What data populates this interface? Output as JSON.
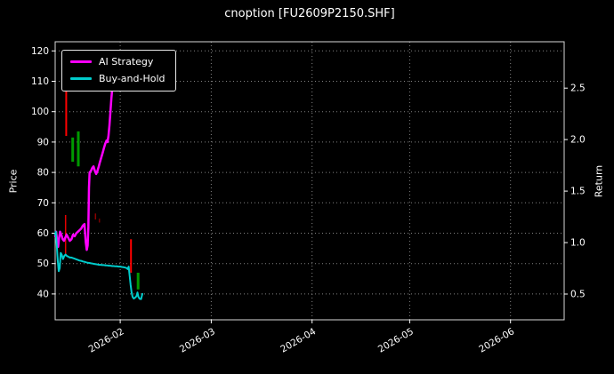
{
  "chart_data": {
    "type": "line",
    "title": "cnoption [FU2609P2150.SHF]",
    "xlabel": "",
    "ylabel_left": "Price",
    "ylabel_right": "Return",
    "legend_position": "upper left",
    "grid": "dotted",
    "colors": {
      "background": "#000000",
      "text": "#ffffff",
      "grid": "#9a9a9a",
      "up_mark": "#009900",
      "down_mark": "#ff0000"
    },
    "x_unit": "days from 2026-02-01",
    "xlim": [
      -20,
      136.5
    ],
    "ylim_left": [
      31.5,
      123
    ],
    "ylim_right": [
      0.25,
      2.95
    ],
    "x_tick_pos": [
      0,
      28,
      59,
      89,
      120
    ],
    "x_tick_labels": [
      "2026-02",
      "2026-03",
      "2026-04",
      "2026-05",
      "2026-06"
    ],
    "y_left_ticks": [
      40,
      50,
      60,
      70,
      80,
      90,
      100,
      110,
      120
    ],
    "y_right_ticks": [
      0.5,
      1.0,
      1.5,
      2.0,
      2.5
    ],
    "series": [
      {
        "name": "AI Strategy",
        "color": "#ff00ff",
        "width": 2.5,
        "axis": "left",
        "points": [
          [
            -20,
            59
          ],
          [
            -19.7,
            60.5
          ],
          [
            -19.4,
            57.5
          ],
          [
            -19.1,
            55.5
          ],
          [
            -18.8,
            58.5
          ],
          [
            -18.5,
            60.5
          ],
          [
            -18.1,
            59.5
          ],
          [
            -17.7,
            58
          ],
          [
            -17.3,
            57.5
          ],
          [
            -16.9,
            58.5
          ],
          [
            -16.5,
            59.5
          ],
          [
            -16,
            58.5
          ],
          [
            -15.5,
            57.5
          ],
          [
            -15,
            58
          ],
          [
            -14.5,
            59.5
          ],
          [
            -14,
            59
          ],
          [
            -13.5,
            60
          ],
          [
            -13,
            60.5
          ],
          [
            -12.5,
            61
          ],
          [
            -12,
            61.5
          ],
          [
            -11.5,
            62.5
          ],
          [
            -11,
            63
          ],
          [
            -10.6,
            57
          ],
          [
            -10.3,
            54.5
          ],
          [
            -10,
            56
          ],
          [
            -9.8,
            62
          ],
          [
            -9.6,
            75
          ],
          [
            -9.4,
            80
          ],
          [
            -9,
            80.5
          ],
          [
            -8.6,
            81.5
          ],
          [
            -8.2,
            82
          ],
          [
            -7.8,
            80.5
          ],
          [
            -7.4,
            79.5
          ],
          [
            -7,
            80.5
          ],
          [
            -6.6,
            82
          ],
          [
            -6.2,
            83.5
          ],
          [
            -5.8,
            85
          ],
          [
            -5.4,
            86.5
          ],
          [
            -5,
            88
          ],
          [
            -4.6,
            89.5
          ],
          [
            -4.2,
            90.5
          ],
          [
            -3.9,
            90
          ],
          [
            -3.6,
            92
          ],
          [
            -3.3,
            95.5
          ],
          [
            -3,
            100
          ],
          [
            -2.7,
            104.5
          ],
          [
            -2.4,
            108
          ],
          [
            -2.2,
            110
          ]
        ]
      },
      {
        "name": "Buy-and-Hold",
        "color": "#00cccc",
        "width": 2,
        "axis": "left",
        "points": [
          [
            -20,
            59.5
          ],
          [
            -19.8,
            60.5
          ],
          [
            -19.5,
            56
          ],
          [
            -19.2,
            51
          ],
          [
            -18.9,
            47.5
          ],
          [
            -18.6,
            48.5
          ],
          [
            -18.3,
            53.5
          ],
          [
            -18,
            53
          ],
          [
            -17.6,
            51.5
          ],
          [
            -17.2,
            52.5
          ],
          [
            -16.8,
            53
          ],
          [
            -16.4,
            52.5
          ],
          [
            -16,
            52.3
          ],
          [
            -15.5,
            52
          ],
          [
            -15,
            52
          ],
          [
            -14.5,
            51.8
          ],
          [
            -14,
            51.6
          ],
          [
            -13.5,
            51.4
          ],
          [
            -13,
            51.2
          ],
          [
            -12.5,
            51
          ],
          [
            -12,
            50.9
          ],
          [
            -11.5,
            50.7
          ],
          [
            -11,
            50.6
          ],
          [
            -10.5,
            50.4
          ],
          [
            -10,
            50.3
          ],
          [
            -9.5,
            50.2
          ],
          [
            -9,
            50.1
          ],
          [
            -8.5,
            50
          ],
          [
            -8,
            49.9
          ],
          [
            -7.5,
            49.8
          ],
          [
            -7,
            49.7
          ],
          [
            -6.5,
            49.6
          ],
          [
            -6,
            49.6
          ],
          [
            -5.5,
            49.5
          ],
          [
            -5,
            49.5
          ],
          [
            -4.5,
            49.4
          ],
          [
            -4,
            49.4
          ],
          [
            -3.5,
            49.3
          ],
          [
            -3,
            49.3
          ],
          [
            -2.5,
            49.2
          ],
          [
            -2,
            49.2
          ],
          [
            -1.5,
            49.1
          ],
          [
            -1,
            49.1
          ],
          [
            -0.5,
            49
          ],
          [
            0,
            49
          ],
          [
            0.5,
            48.9
          ],
          [
            1,
            48.8
          ],
          [
            1.5,
            48.7
          ],
          [
            2,
            48.5
          ],
          [
            2.3,
            48.2
          ],
          [
            2.6,
            49
          ],
          [
            2.9,
            46
          ],
          [
            3.2,
            43
          ],
          [
            3.5,
            40.5
          ],
          [
            3.8,
            39
          ],
          [
            4.2,
            38.5
          ],
          [
            4.6,
            38.8
          ],
          [
            5,
            39.3
          ],
          [
            5.3,
            40.5
          ],
          [
            5.6,
            39
          ],
          [
            6,
            38.4
          ],
          [
            6.4,
            38.3
          ],
          [
            6.8,
            40
          ]
        ]
      }
    ],
    "candles": [
      {
        "x": -16.6,
        "low": 92,
        "high": 107.5,
        "color": "#ff0000",
        "w": 2,
        "opacity": 1
      },
      {
        "x": -16.8,
        "low": 53,
        "high": 66,
        "color": "#ff0000",
        "w": 1.5,
        "opacity": 0.9
      },
      {
        "x": -14.6,
        "low": 83.5,
        "high": 91.5,
        "color": "#009900",
        "w": 3,
        "opacity": 1
      },
      {
        "x": -12.9,
        "low": 82,
        "high": 93.5,
        "color": "#009900",
        "w": 3,
        "opacity": 1
      },
      {
        "x": -7.6,
        "low": 64.5,
        "high": 66.5,
        "color": "#ff0000",
        "w": 1.5,
        "opacity": 0.55
      },
      {
        "x": -6.4,
        "low": 63.5,
        "high": 64.8,
        "color": "#ff0000",
        "w": 1.5,
        "opacity": 0.45
      },
      {
        "x": 3.3,
        "low": 47,
        "high": 58,
        "color": "#ff0000",
        "w": 2,
        "opacity": 1
      },
      {
        "x": 5.5,
        "low": 41.5,
        "high": 47,
        "color": "#009900",
        "w": 3,
        "opacity": 1
      }
    ]
  }
}
